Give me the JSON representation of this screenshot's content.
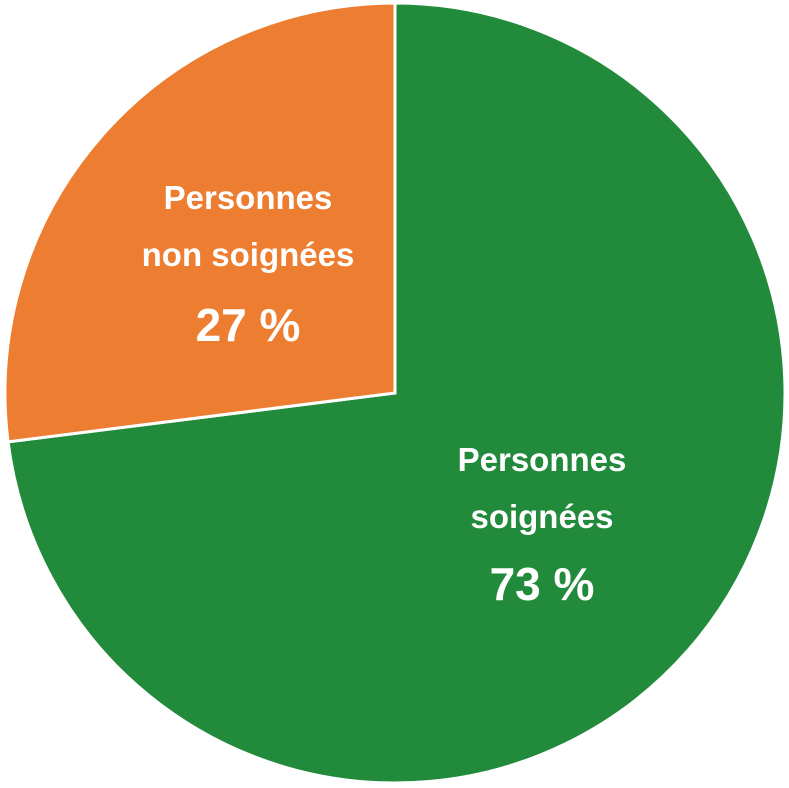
{
  "chart_data": {
    "type": "pie",
    "slices": [
      {
        "label_lines": [
          "Personnes",
          "soignées"
        ],
        "value": 73,
        "value_label": "73 %",
        "color": "#228a3b"
      },
      {
        "label_lines": [
          "Personnes",
          "non soignées"
        ],
        "value": 27,
        "value_label": "27 %",
        "color": "#ed7d31"
      }
    ],
    "start": "12 o'clock",
    "direction": "clockwise",
    "legend": "none",
    "slice_border_color": "#ffffff"
  }
}
